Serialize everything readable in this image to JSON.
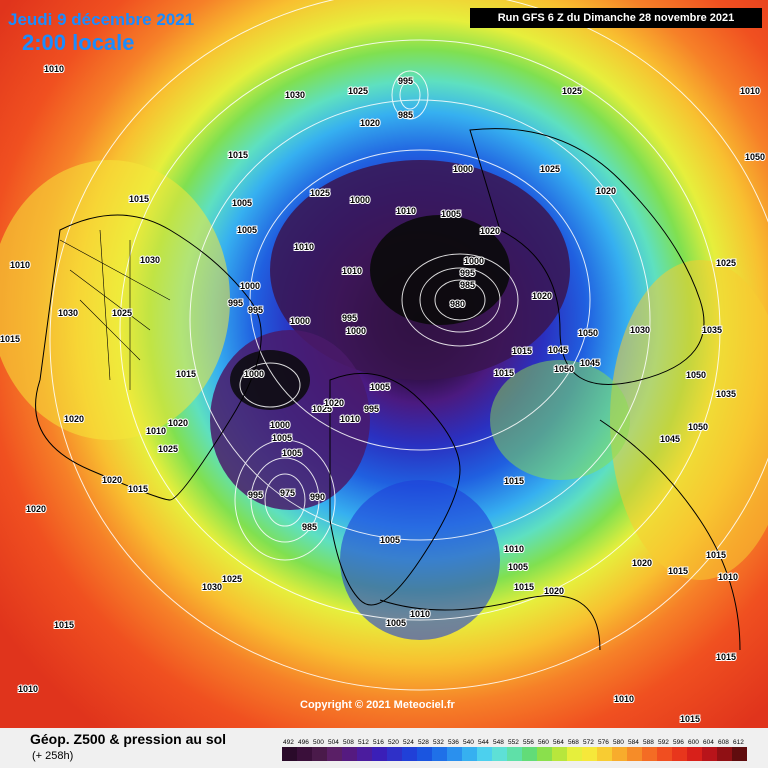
{
  "header": {
    "date": "Jeudi 9 décembre 2021",
    "local_time": "2:00 locale",
    "run": "Run GFS 6 Z du Dimanche 28 novembre 2021"
  },
  "copyright": "Copyright © 2021 Meteociel.fr",
  "legend": {
    "title": "Géop. Z500 & pression au sol",
    "subtitle": "(+ 258h)",
    "scale_labels": [
      "492",
      "496",
      "500",
      "504",
      "508",
      "512",
      "516",
      "520",
      "524",
      "528",
      "532",
      "536",
      "540",
      "544",
      "548",
      "552",
      "556",
      "560",
      "564",
      "568",
      "572",
      "576",
      "580",
      "584",
      "588",
      "592",
      "596",
      "600",
      "604",
      "608",
      "612"
    ],
    "scale_colors": [
      "#2a0a2a",
      "#3a0f3a",
      "#4a1a4a",
      "#5a1f66",
      "#551a80",
      "#4b1c9e",
      "#3a1fb8",
      "#2f30c8",
      "#2040d8",
      "#1a55e0",
      "#1f70e8",
      "#2a90ee",
      "#36b0f0",
      "#4cd0ee",
      "#5ee0d6",
      "#5fe0a8",
      "#62dc78",
      "#8ae04c",
      "#b8e63c",
      "#e6ef3c",
      "#f6e83a",
      "#f8cc32",
      "#f8ac2c",
      "#f68c28",
      "#f46c24",
      "#f04e20",
      "#e8361c",
      "#d8201a",
      "#b8141a",
      "#901014",
      "#600c0e"
    ]
  },
  "map": {
    "pressure_labels": [
      "1010",
      "1025",
      "995",
      "985",
      "1030",
      "1020",
      "1015",
      "1005",
      "1000",
      "990",
      "980",
      "1050",
      "1045",
      "1035",
      "975"
    ]
  }
}
